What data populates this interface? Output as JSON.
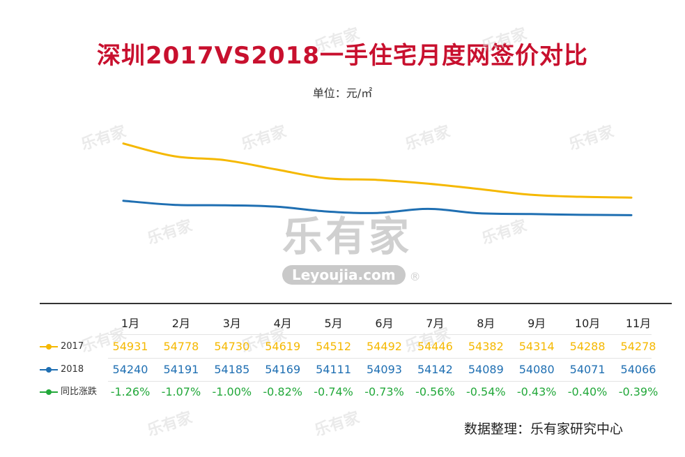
{
  "title": "深圳2017VS2018一手住宅月度网签价对比",
  "unit_label": "单位：元/㎡",
  "source": "数据整理：乐有家研究中心",
  "watermark": {
    "cn": "乐有家",
    "en": "Leyoujia.com",
    "reg": "®"
  },
  "colors": {
    "s2017": "#F5B800",
    "s2018": "#1F6FB2",
    "change": "#22A83A",
    "title": "#C8102E"
  },
  "chart_data": {
    "type": "line",
    "title": "深圳2017VS2018一手住宅月度网签价对比",
    "ylabel": "单位：元/㎡",
    "categories": [
      "1月",
      "2月",
      "3月",
      "4月",
      "5月",
      "6月",
      "7月",
      "8月",
      "9月",
      "10月",
      "11月"
    ],
    "series": [
      {
        "name": "2017",
        "color": "#F5B800",
        "values": [
          54931,
          54778,
          54730,
          54619,
          54512,
          54492,
          54446,
          54382,
          54314,
          54288,
          54278
        ]
      },
      {
        "name": "2018",
        "color": "#1F6FB2",
        "values": [
          54240,
          54191,
          54185,
          54169,
          54111,
          54093,
          54142,
          54089,
          54080,
          54071,
          54066
        ]
      }
    ],
    "change": {
      "name": "同比涨跌",
      "values": [
        "-1.26%",
        "-1.07%",
        "-1.00%",
        "-0.82%",
        "-0.74%",
        "-0.73%",
        "-0.56%",
        "-0.54%",
        "-0.43%",
        "-0.40%",
        "-0.39%"
      ]
    },
    "ylim": [
      53000,
      55400
    ],
    "grid": false
  }
}
